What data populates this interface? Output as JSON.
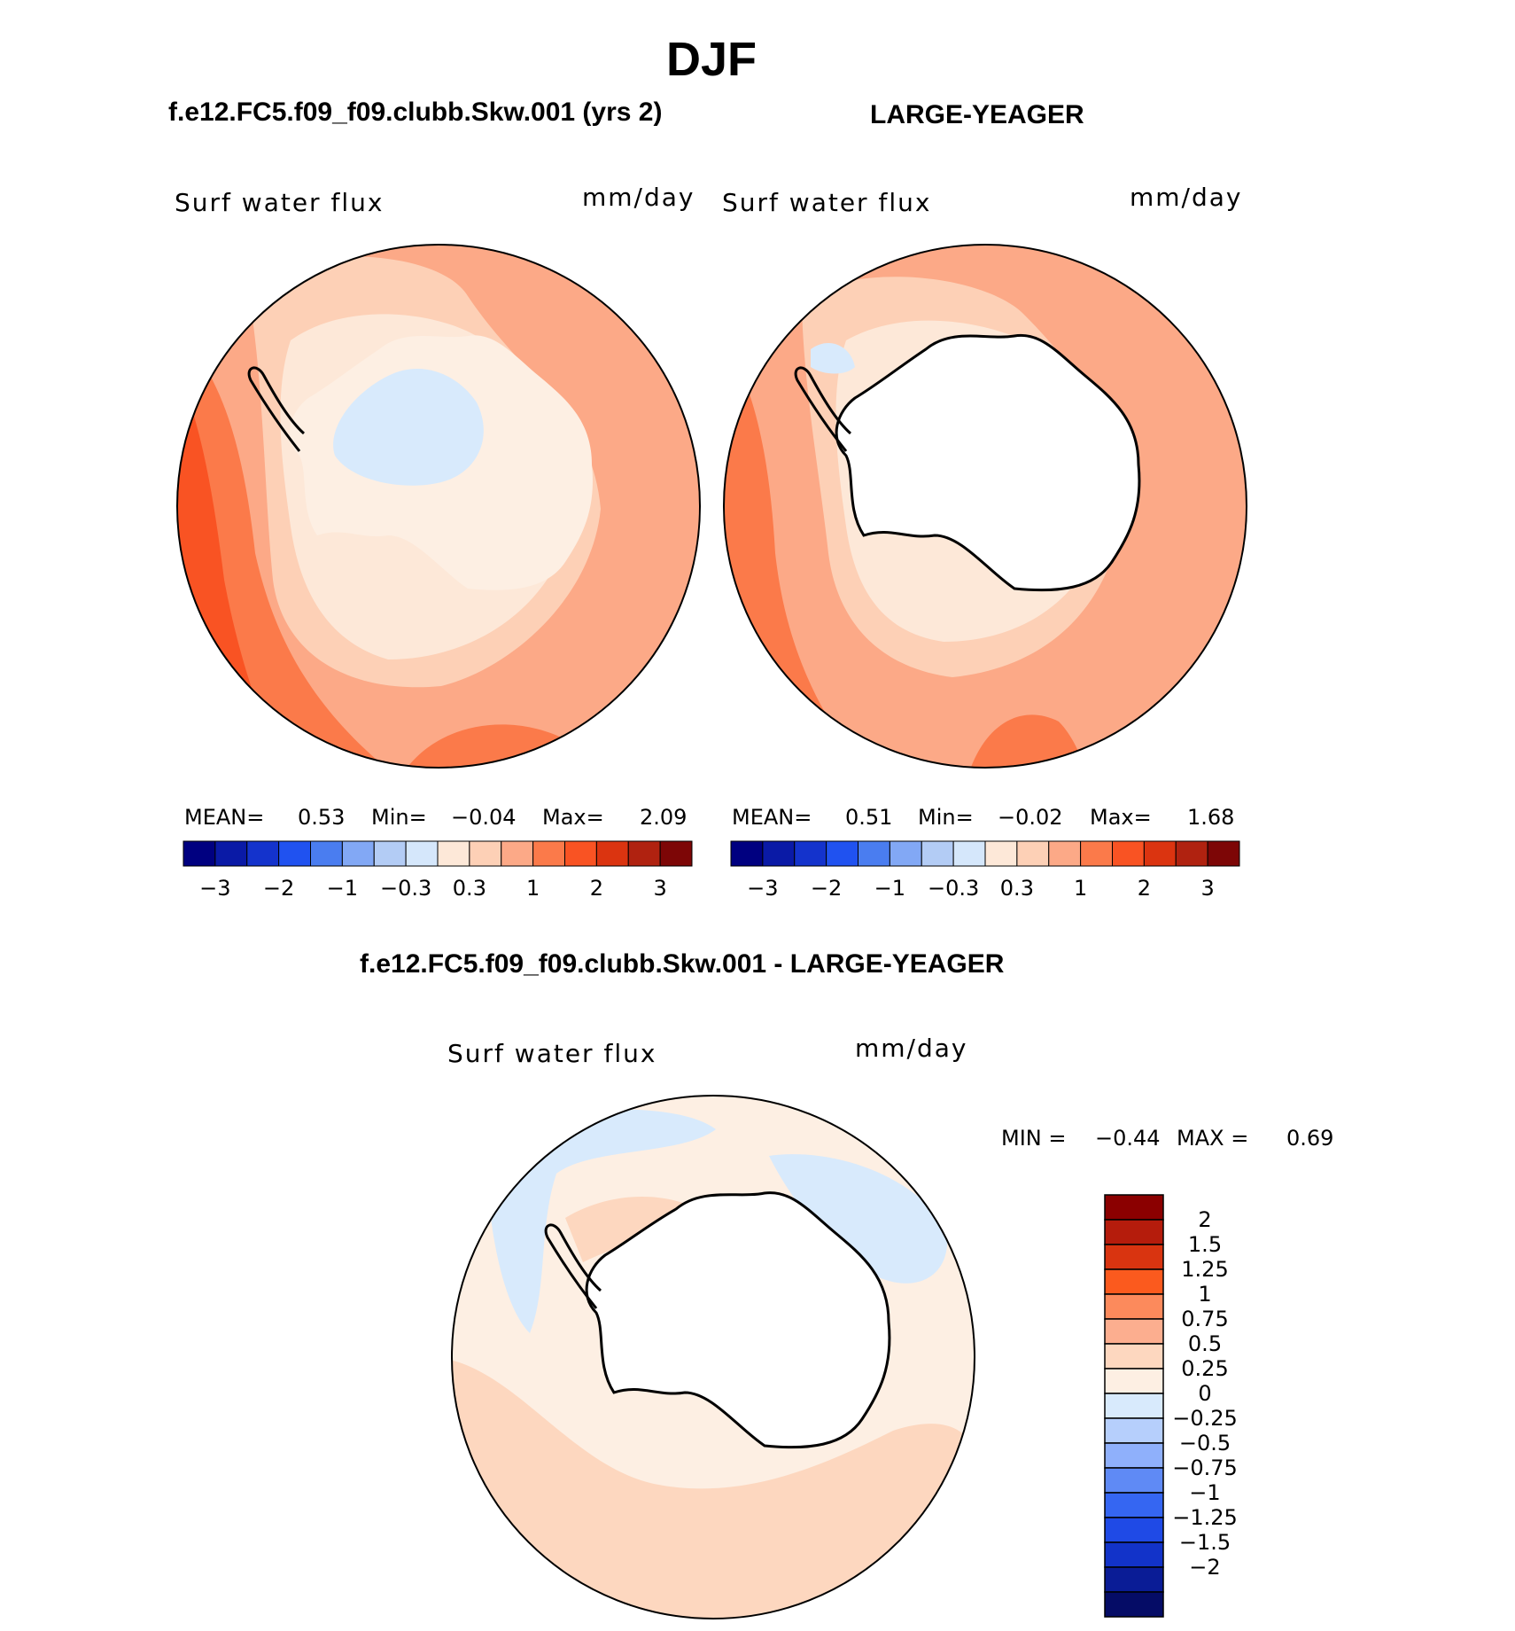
{
  "page": {
    "title": "DJF",
    "left_title": "f.e12.FC5.f09_f09.clubb.Skw.001 (yrs 2)",
    "right_title": "LARGE-YEAGER",
    "diff_title": "f.e12.FC5.f09_f09.clubb.Skw.001 - LARGE-YEAGER"
  },
  "panels": {
    "left": {
      "variable": "Surf water flux",
      "units": "mm/day",
      "mean_label": "MEAN=",
      "mean": "0.53",
      "min_label": "Min=",
      "min": "−0.04",
      "max_label": "Max=",
      "max": "2.09"
    },
    "right": {
      "variable": "Surf water flux",
      "units": "mm/day",
      "mean_label": "MEAN=",
      "mean": "0.51",
      "min_label": "Min=",
      "min": "−0.02",
      "max_label": "Max=",
      "max": "1.68"
    },
    "diff": {
      "variable": "Surf water flux",
      "units": "mm/day",
      "min_label": "MIN =",
      "min": "−0.44",
      "max_label": "MAX =",
      "max": "0.69"
    }
  },
  "colorbar_horizontal": {
    "colors": [
      "#000080",
      "#0a1aa6",
      "#1433cc",
      "#2052f0",
      "#4a7df0",
      "#82a8f5",
      "#b3ccf5",
      "#d5e7fb",
      "#fde8d8",
      "#fdd0b6",
      "#fca987",
      "#fb7a4a",
      "#f95323",
      "#db3410",
      "#b02210",
      "#7d0606"
    ],
    "ticks": [
      "−3",
      "−2",
      "−1",
      "−0.3",
      "0.3",
      "1",
      "2",
      "3"
    ]
  },
  "colorbar_vertical": {
    "colors_top_to_bottom": [
      "#8b0000",
      "#b51c0c",
      "#d93410",
      "#fb5a1e",
      "#fc8a5c",
      "#fcae8f",
      "#fdd7bf",
      "#fdefe3",
      "#d8eafc",
      "#b6cffc",
      "#8fb0fb",
      "#5f8af5",
      "#3566f2",
      "#1f4ae6",
      "#1233c9",
      "#0a1c96",
      "#050c66"
    ],
    "labels": [
      "2",
      "1.5",
      "1.25",
      "1",
      "0.75",
      "0.5",
      "0.25",
      "0",
      "−0.25",
      "−0.5",
      "−0.75",
      "−1",
      "−1.25",
      "−1.5",
      "−2"
    ]
  },
  "map_colors": {
    "land_flux": "#fdefe3",
    "land_neg": "#d8eafc",
    "ocean_low": "#fde8d8",
    "ocean_mid": "#fdd0b6",
    "ocean_high": "#fca987",
    "ocean_very_high": "#fb7a4a",
    "ocean_extreme": "#f95323",
    "diff_pos": "#fdd7bf",
    "diff_light": "#fdefe3",
    "diff_neg": "#d8eafc",
    "diff_neg2": "#b6cffc",
    "coast": "#000000"
  }
}
